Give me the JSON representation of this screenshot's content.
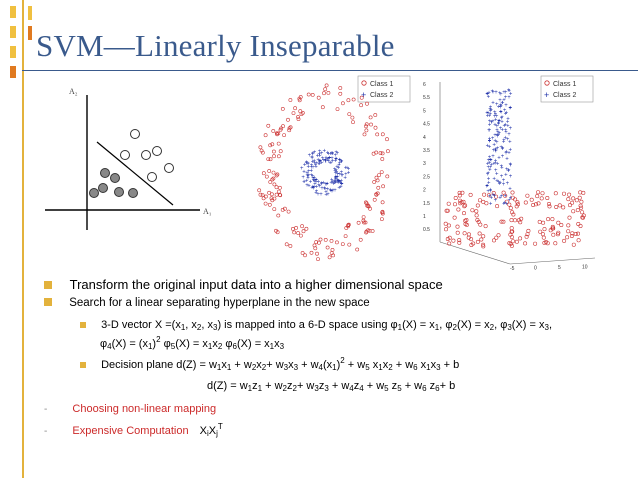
{
  "title": "SVM—Linearly Inseparable",
  "figure1": {
    "y_axis_label": "A₂",
    "x_axis_label": "A₁"
  },
  "figure2": {
    "legend": [
      "Class 1",
      "Class 2"
    ]
  },
  "figure3": {
    "legend": [
      "Class 1",
      "Class 2"
    ],
    "z_ticks": [
      "6",
      "5.5",
      "5",
      "4.5",
      "4",
      "3.5",
      "3",
      "2.5",
      "2",
      "1.5",
      "1",
      "0.5"
    ],
    "x_ticks": [
      "-5",
      "0",
      "5",
      "10"
    ]
  },
  "bullets": {
    "b1": "Transform the original input data into a higher dimensional space",
    "b2": "Search for a linear separating hyperplane in the new space",
    "b3_text": "3-D vector X =(x1, x2, x3) is mapped into a 6-D space using φ1(X) = x1, φ2(X) = x2, φ3(X) = x3, φ4(X) = (x1)2 φ5(X) = x1x2 φ6(X) = x1x3",
    "b4_text": "Decision plane d(Z) = w1x1 + w2x2+ w3x3 + w4(x1)2 + w5 x1x2 + w6 x1x3 + b",
    "b4b_text": "d(Z) = w1z1 + w2z2+ w3z3 + w4z4 + w5 z5 + w6 z6+ b",
    "b5": "Choosing non-linear mapping",
    "b6": "Expensive Computation",
    "b6_formula": "XiXjT"
  },
  "colors": {
    "title": "#3a5a8c",
    "accent": "#e3b23c",
    "class1": "#cc3333",
    "class2": "#2233aa",
    "red_text": "#cc2a2a"
  }
}
